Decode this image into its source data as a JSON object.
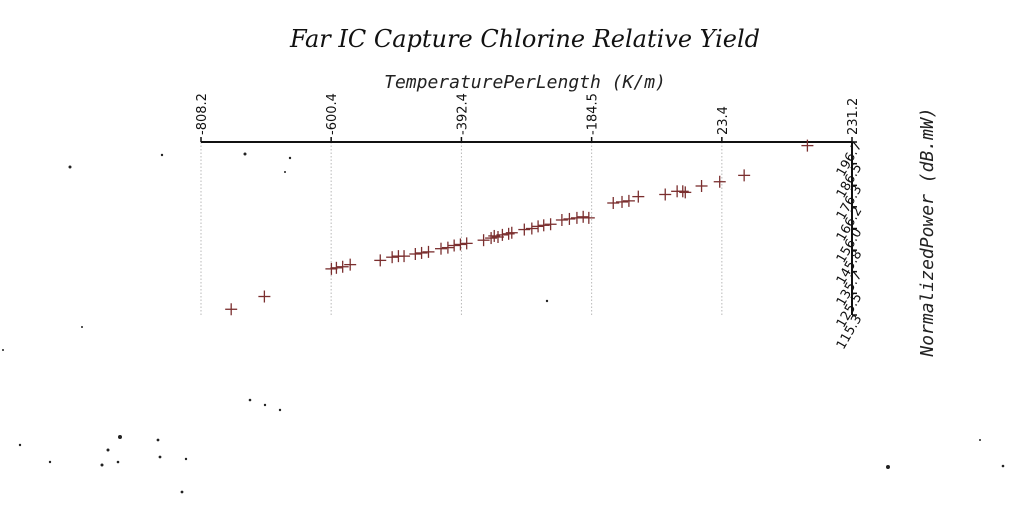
{
  "chart_data": {
    "type": "scatter",
    "title": "Far IC Capture Chlorine Relative Yield",
    "xlabel": "TemperaturePerLength (K/m)",
    "ylabel": "NormalizedPower (dB.mW)",
    "x_ticks": [
      "-808.2",
      "-600.4",
      "-392.4",
      "-184.5",
      "23.4",
      "231.2"
    ],
    "y_ticks": [
      "115.3",
      "125.5",
      "135.7",
      "145.8",
      "156.0",
      "166.2",
      "176.3",
      "186.5",
      "196.7"
    ],
    "xlim": [
      -808.2,
      231.2
    ],
    "ylim": [
      115.3,
      196.7
    ],
    "grid": "vertical",
    "marker_color": "#7a2e2e",
    "points": [
      {
        "x": -760,
        "y": 118
      },
      {
        "x": -707,
        "y": 124
      },
      {
        "x": -600,
        "y": 137
      },
      {
        "x": -592,
        "y": 137.5
      },
      {
        "x": -582,
        "y": 138
      },
      {
        "x": -570,
        "y": 139
      },
      {
        "x": -522,
        "y": 141
      },
      {
        "x": -503,
        "y": 142.5
      },
      {
        "x": -493,
        "y": 143
      },
      {
        "x": -484,
        "y": 143
      },
      {
        "x": -466,
        "y": 144
      },
      {
        "x": -456,
        "y": 144.5
      },
      {
        "x": -445,
        "y": 145
      },
      {
        "x": -425,
        "y": 146.5
      },
      {
        "x": -414,
        "y": 147
      },
      {
        "x": -404,
        "y": 148
      },
      {
        "x": -394,
        "y": 148.5
      },
      {
        "x": -384,
        "y": 149
      },
      {
        "x": -357,
        "y": 150.5
      },
      {
        "x": -345,
        "y": 151.5
      },
      {
        "x": -340,
        "y": 152.5
      },
      {
        "x": -334,
        "y": 152
      },
      {
        "x": -327,
        "y": 153
      },
      {
        "x": -317,
        "y": 153.5
      },
      {
        "x": -312,
        "y": 154
      },
      {
        "x": -292,
        "y": 155.5
      },
      {
        "x": -280,
        "y": 156
      },
      {
        "x": -270,
        "y": 157
      },
      {
        "x": -261,
        "y": 157.5
      },
      {
        "x": -250,
        "y": 158
      },
      {
        "x": -232,
        "y": 160
      },
      {
        "x": -220,
        "y": 160.5
      },
      {
        "x": -208,
        "y": 161
      },
      {
        "x": -198,
        "y": 161.5
      },
      {
        "x": -189,
        "y": 161
      },
      {
        "x": -150,
        "y": 168
      },
      {
        "x": -136,
        "y": 168.5
      },
      {
        "x": -125,
        "y": 169
      },
      {
        "x": -110,
        "y": 171
      },
      {
        "x": -67,
        "y": 172
      },
      {
        "x": -48,
        "y": 173.5
      },
      {
        "x": -39,
        "y": 173.5
      },
      {
        "x": -35,
        "y": 173
      },
      {
        "x": -9,
        "y": 176
      },
      {
        "x": 20,
        "y": 178
      },
      {
        "x": 59,
        "y": 181
      },
      {
        "x": 160,
        "y": 195
      }
    ]
  }
}
